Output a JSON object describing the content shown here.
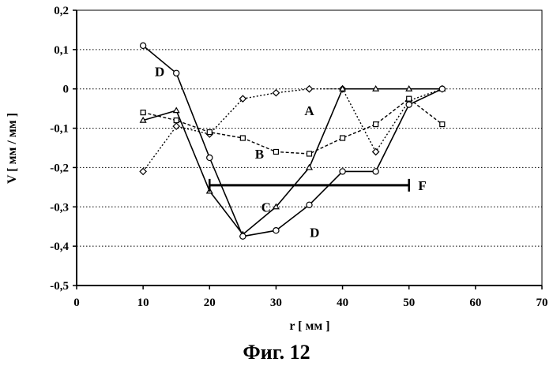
{
  "caption": "Фиг. 12",
  "chart_data": {
    "type": "line",
    "xlabel": "r [ мм ]",
    "ylabel": "V [ мм / мм ]",
    "xlim": [
      0,
      70
    ],
    "ylim": [
      -0.5,
      0.2
    ],
    "xticks": [
      "0",
      "10",
      "20",
      "30",
      "40",
      "50",
      "60",
      "70"
    ],
    "yticks": [
      "0,2",
      "0,1",
      "0",
      "-0,1",
      "-0,2",
      "-0,3",
      "-0,4",
      "-0,5"
    ],
    "grid": true,
    "series": [
      {
        "name": "A",
        "marker": "diamond",
        "line": "dotted",
        "x": [
          10,
          15,
          20,
          25,
          30,
          35,
          40,
          45,
          50,
          55
        ],
        "y": [
          -0.21,
          -0.095,
          -0.115,
          -0.025,
          -0.01,
          0.0,
          0.0,
          -0.16,
          -0.03,
          0.0
        ]
      },
      {
        "name": "B",
        "marker": "square",
        "line": "dashed",
        "x": [
          10,
          15,
          20,
          25,
          30,
          35,
          40,
          45,
          50,
          55
        ],
        "y": [
          -0.06,
          -0.08,
          -0.11,
          -0.125,
          -0.16,
          -0.165,
          -0.125,
          -0.09,
          -0.025,
          -0.09
        ]
      },
      {
        "name": "C",
        "marker": "triangle",
        "line": "solid",
        "x": [
          10,
          15,
          20,
          25,
          30,
          35,
          40,
          45,
          50,
          55
        ],
        "y": [
          -0.08,
          -0.055,
          -0.26,
          -0.37,
          -0.3,
          -0.2,
          0.0,
          0.0,
          0.0,
          0.0
        ]
      },
      {
        "name": "D",
        "marker": "circle",
        "line": "solid",
        "x": [
          10,
          15,
          20,
          25,
          30,
          35,
          40,
          45,
          50,
          55
        ],
        "y": [
          0.11,
          0.04,
          -0.175,
          -0.375,
          -0.36,
          -0.295,
          -0.21,
          -0.21,
          -0.04,
          0.0
        ]
      }
    ],
    "range_bar": {
      "name": "F",
      "x": [
        20,
        50
      ],
      "y": -0.245
    },
    "labels": [
      {
        "text": "D",
        "x": 12.5,
        "y": 0.045
      },
      {
        "text": "A",
        "x": 35,
        "y": -0.055
      },
      {
        "text": "B",
        "x": 27.5,
        "y": -0.165
      },
      {
        "text": "C",
        "x": 28.5,
        "y": -0.3
      },
      {
        "text": "D",
        "x": 35.8,
        "y": -0.365
      },
      {
        "text": "F",
        "x": 52,
        "y": -0.245
      }
    ]
  }
}
